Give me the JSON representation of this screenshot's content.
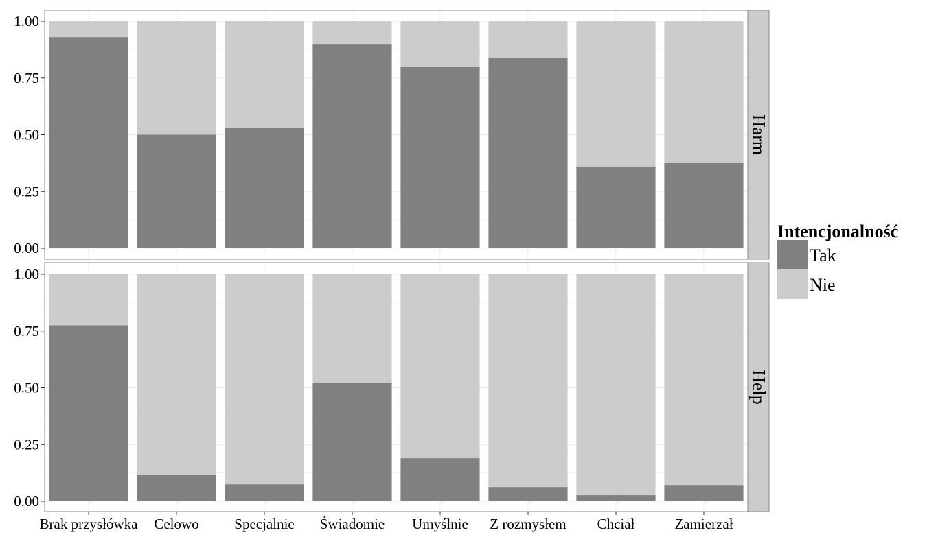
{
  "chart_data": {
    "type": "bar",
    "stacked": true,
    "categories": [
      "Brak przysłówka",
      "Celowo",
      "Specjalnie",
      "Świadomie",
      "Umyślnie",
      "Z rozmysłem",
      "Chciał",
      "Zamierzał"
    ],
    "ylim": [
      0,
      1
    ],
    "yticks": [
      "0.00",
      "0.25",
      "0.50",
      "0.75",
      "1.00"
    ],
    "grid": true,
    "legend": {
      "title": "Intencjonalność",
      "position": "right",
      "entries": [
        {
          "name": "Tak",
          "color": "#808080"
        },
        {
          "name": "Nie",
          "color": "#cccccc"
        }
      ]
    },
    "facets": [
      {
        "label": "Harm",
        "series": [
          {
            "name": "Tak",
            "values": [
              0.93,
              0.5,
              0.53,
              0.9,
              0.8,
              0.84,
              0.36,
              0.375
            ]
          },
          {
            "name": "Nie",
            "values": [
              0.07,
              0.5,
              0.47,
              0.1,
              0.2,
              0.16,
              0.64,
              0.625
            ]
          }
        ]
      },
      {
        "label": "Help",
        "series": [
          {
            "name": "Tak",
            "values": [
              0.775,
              0.115,
              0.075,
              0.52,
              0.19,
              0.063,
              0.027,
              0.072
            ]
          },
          {
            "name": "Nie",
            "values": [
              0.225,
              0.885,
              0.925,
              0.48,
              0.81,
              0.937,
              0.973,
              0.928
            ]
          }
        ]
      }
    ]
  }
}
